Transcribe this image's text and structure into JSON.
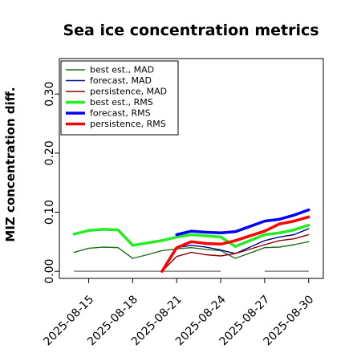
{
  "chart_data": {
    "type": "line",
    "title": "Sea ice concentration metrics",
    "xlabel": "",
    "ylabel": "MIZ concentration diff.",
    "xlim": [
      "2025-08-13",
      "2025-08-31"
    ],
    "ylim": [
      -0.012,
      0.36
    ],
    "yticks": [
      0.0,
      0.1,
      0.2,
      0.3
    ],
    "ytick_labels": [
      "0.00",
      "0.10",
      "0.20",
      "0.30"
    ],
    "xticks": [
      "2025-08-15",
      "2025-08-18",
      "2025-08-21",
      "2025-08-24",
      "2025-08-27",
      "2025-08-30"
    ],
    "xtick_colors": [
      "#000000",
      "#000000",
      "#228b22",
      "#000000",
      "#000000",
      "#000000"
    ],
    "legend_position": "top-left",
    "baselines": [
      {
        "x": [
          "2025-08-14",
          "2025-08-24"
        ],
        "y": 0.0
      },
      {
        "x": [
          "2025-08-27",
          "2025-08-30"
        ],
        "y": 0.0
      }
    ],
    "series": [
      {
        "name": "best est., MAD",
        "color": "#1e6e1e",
        "width": 1.4,
        "x": [
          "2025-08-14",
          "2025-08-15",
          "2025-08-16",
          "2025-08-17",
          "2025-08-18",
          "2025-08-19",
          "2025-08-20",
          "2025-08-21",
          "2025-08-22",
          "2025-08-23",
          "2025-08-24",
          "2025-08-25",
          "2025-08-27",
          "2025-08-28",
          "2025-08-29",
          "2025-08-30"
        ],
        "y": [
          0.032,
          0.039,
          0.041,
          0.04,
          0.022,
          0.028,
          0.035,
          0.038,
          0.04,
          0.037,
          0.035,
          0.022,
          0.04,
          0.041,
          0.045,
          0.05
        ]
      },
      {
        "name": "forecast,  MAD",
        "color": "#00008b",
        "width": 1.4,
        "x": [
          "2025-08-21",
          "2025-08-22",
          "2025-08-23",
          "2025-08-24",
          "2025-08-25",
          "2025-08-27",
          "2025-08-28",
          "2025-08-29",
          "2025-08-30"
        ],
        "y": [
          0.04,
          0.044,
          0.041,
          0.036,
          0.03,
          0.052,
          0.058,
          0.062,
          0.072
        ]
      },
      {
        "name": "persistence, MAD",
        "color": "#8b0000",
        "width": 1.4,
        "x": [
          "2025-08-20",
          "2025-08-21",
          "2025-08-22",
          "2025-08-23",
          "2025-08-24",
          "2025-08-25",
          "2025-08-27",
          "2025-08-28",
          "2025-08-29",
          "2025-08-30"
        ],
        "y": [
          0.0,
          0.025,
          0.032,
          0.028,
          0.026,
          0.03,
          0.045,
          0.052,
          0.055,
          0.062
        ]
      },
      {
        "name": "best est., RMS",
        "color": "#22ee22",
        "width": 3.5,
        "x": [
          "2025-08-14",
          "2025-08-15",
          "2025-08-16",
          "2025-08-17",
          "2025-08-18",
          "2025-08-19",
          "2025-08-20",
          "2025-08-21",
          "2025-08-22",
          "2025-08-23",
          "2025-08-24",
          "2025-08-25",
          "2025-08-27",
          "2025-08-28",
          "2025-08-29",
          "2025-08-30"
        ],
        "y": [
          0.063,
          0.069,
          0.071,
          0.07,
          0.044,
          0.048,
          0.052,
          0.058,
          0.062,
          0.06,
          0.058,
          0.042,
          0.062,
          0.065,
          0.07,
          0.078
        ]
      },
      {
        "name": "forecast,  RMS",
        "color": "#0000ff",
        "width": 3.5,
        "x": [
          "2025-08-21",
          "2025-08-22",
          "2025-08-23",
          "2025-08-24",
          "2025-08-25",
          "2025-08-27",
          "2025-08-28",
          "2025-08-29",
          "2025-08-30"
        ],
        "y": [
          0.062,
          0.068,
          0.066,
          0.065,
          0.067,
          0.085,
          0.088,
          0.095,
          0.104
        ]
      },
      {
        "name": "persistence, RMS",
        "color": "#ff0000",
        "width": 3.5,
        "x": [
          "2025-08-20",
          "2025-08-21",
          "2025-08-22",
          "2025-08-23",
          "2025-08-24",
          "2025-08-25",
          "2025-08-27",
          "2025-08-28",
          "2025-08-29",
          "2025-08-30"
        ],
        "y": [
          0.0,
          0.04,
          0.05,
          0.047,
          0.046,
          0.052,
          0.068,
          0.08,
          0.085,
          0.092
        ]
      }
    ]
  }
}
